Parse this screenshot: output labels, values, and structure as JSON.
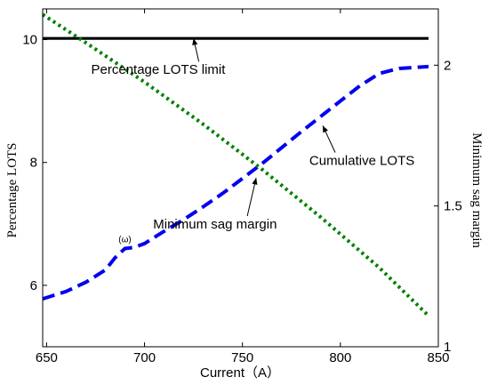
{
  "chart_data": {
    "type": "line",
    "xlabel": "Current（A）",
    "ylabel_left": "Percentage LOTS",
    "ylabel_right": "Minimum sag margin",
    "xlim": [
      648,
      850
    ],
    "ylim_left": [
      5,
      10.5
    ],
    "ylim_right": [
      1,
      2.2
    ],
    "x_ticks": [
      650,
      700,
      750,
      800,
      850
    ],
    "y_left_ticks": [
      6,
      8,
      10
    ],
    "y_right_ticks": [
      1,
      1.5,
      2
    ],
    "grid": false,
    "series": [
      {
        "axis": "left",
        "color": "#000000",
        "style": "solid",
        "x": [
          648,
          845
        ],
        "y": [
          10.02,
          10.02
        ]
      },
      {
        "axis": "left",
        "color": "#0000ee",
        "style": "dashed",
        "x": [
          648,
          660,
          670,
          680,
          685,
          690,
          695,
          700,
          705,
          710,
          720,
          730,
          740,
          750,
          760,
          770,
          780,
          790,
          800,
          810,
          820,
          830,
          845
        ],
        "y": [
          5.78,
          5.9,
          6.05,
          6.25,
          6.45,
          6.6,
          6.62,
          6.68,
          6.78,
          6.88,
          7.07,
          7.28,
          7.5,
          7.74,
          7.98,
          8.24,
          8.5,
          8.75,
          9.0,
          9.25,
          9.45,
          9.53,
          9.56
        ]
      },
      {
        "axis": "right",
        "color": "#008000",
        "style": "dotted",
        "x": [
          648,
          670,
          700,
          730,
          760,
          790,
          820,
          845
        ],
        "y": [
          2.18,
          2.08,
          1.94,
          1.79,
          1.63,
          1.46,
          1.28,
          1.11
        ]
      }
    ],
    "annotations": [
      {
        "text": "Percentage LOTS limit",
        "at_x": 725,
        "at_y": 10.02,
        "text_x": 707,
        "text_y": 9.44
      },
      {
        "text": "Cumulative LOTS",
        "at_x": 791,
        "at_y": 8.6,
        "text_x": 811,
        "text_y": 7.96
      },
      {
        "text": "Minimum sag margin",
        "at_x": 757,
        "at_y": 1.6,
        "text_x": 736,
        "text_y": 1.42
      }
    ],
    "small_annotation": {
      "text": "(ω)",
      "x": 690,
      "y": 6.7
    }
  }
}
